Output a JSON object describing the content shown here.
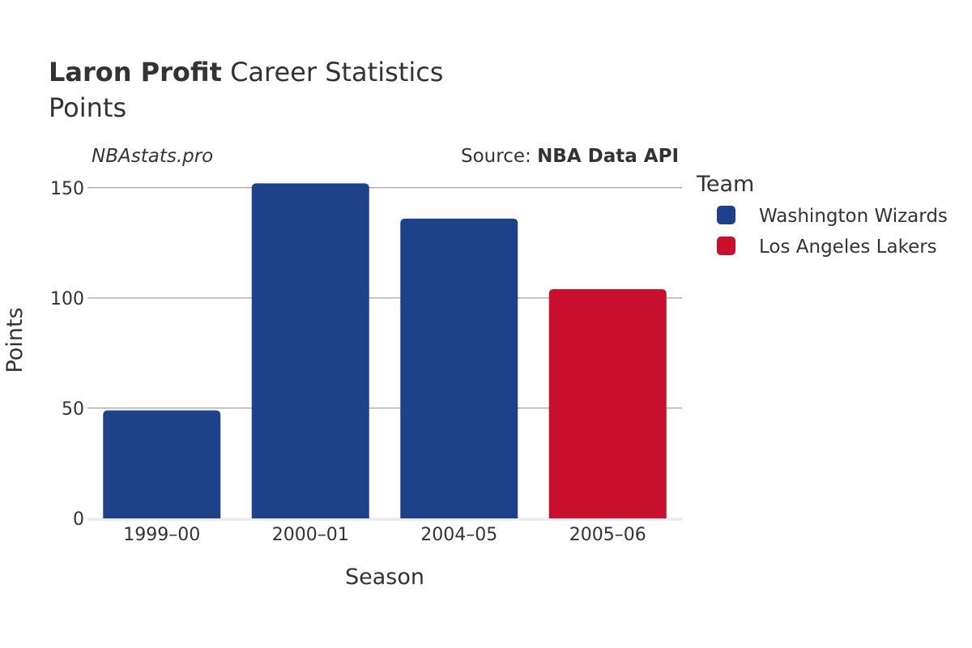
{
  "chart_data": {
    "type": "bar",
    "title_player": "Laron Profit",
    "title_rest": " Career Statistics",
    "subtitle": "Points",
    "watermark": "NBAstats.pro",
    "source_prefix": "Source: ",
    "source_name": "NBA Data API",
    "xlabel": "Season",
    "ylabel": "Points",
    "ylim": [
      0,
      158
    ],
    "yticks": [
      0,
      50,
      100,
      150
    ],
    "categories": [
      "1999–00",
      "2000–01",
      "2004–05",
      "2005–06"
    ],
    "values": [
      49,
      152,
      136,
      104
    ],
    "bar_teams": [
      "Washington Wizards",
      "Washington Wizards",
      "Washington Wizards",
      "Los Angeles Lakers"
    ],
    "legend": {
      "title": "Team",
      "entries": [
        {
          "name": "Washington Wizards",
          "color": "#1d428a"
        },
        {
          "name": "Los Angeles Lakers",
          "color": "#c8102e"
        }
      ]
    }
  }
}
